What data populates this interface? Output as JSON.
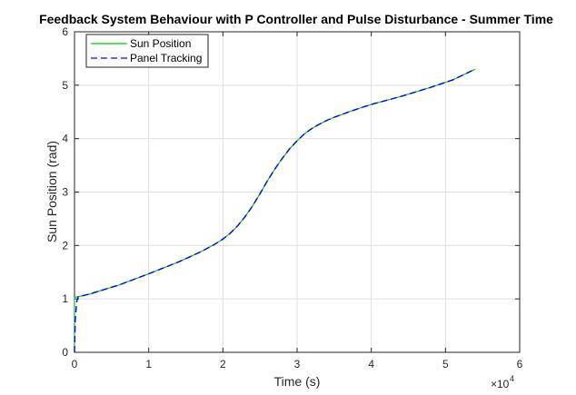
{
  "chart_data": {
    "type": "line",
    "title": "Feedback System Behaviour with P Controller and Pulse Disturbance - Summer Time",
    "xlabel": "Time (s)",
    "ylabel": "Sun Position (rad)",
    "x_multiplier_label": "×10",
    "x_multiplier_exponent": "4",
    "xlim": [
      0,
      60000
    ],
    "ylim": [
      0,
      6
    ],
    "x_ticks": [
      0,
      10000,
      20000,
      30000,
      40000,
      50000,
      60000
    ],
    "x_tick_labels": [
      "0",
      "1",
      "2",
      "3",
      "4",
      "5",
      "6"
    ],
    "y_ticks": [
      0,
      1,
      2,
      3,
      4,
      5,
      6
    ],
    "y_tick_labels": [
      "0",
      "1",
      "2",
      "3",
      "4",
      "5",
      "6"
    ],
    "grid": true,
    "legend_position": "top-left",
    "series": [
      {
        "name": "Sun Position",
        "color": "#00cc00",
        "dash": "solid",
        "x": [
          0,
          0,
          500,
          2000,
          6000,
          10000,
          14000,
          17000,
          19000,
          20000,
          21000,
          22000,
          23000,
          24000,
          25000,
          26000,
          27000,
          28000,
          29000,
          30000,
          31000,
          32000,
          33000,
          34000,
          35000,
          36000,
          38000,
          40000,
          44000,
          48000,
          51000,
          54000
        ],
        "y": [
          0,
          1.03,
          1.04,
          1.09,
          1.26,
          1.47,
          1.69,
          1.88,
          2.03,
          2.12,
          2.23,
          2.37,
          2.54,
          2.74,
          2.97,
          3.21,
          3.43,
          3.63,
          3.81,
          3.96,
          4.09,
          4.19,
          4.27,
          4.34,
          4.4,
          4.45,
          4.55,
          4.64,
          4.79,
          4.96,
          5.1,
          5.3
        ]
      },
      {
        "name": "Panel Tracking",
        "color": "#0000ff",
        "dash": "dashed",
        "x": [
          0,
          100,
          300,
          500,
          2000,
          6000,
          10000,
          14000,
          17000,
          19000,
          20000,
          21000,
          22000,
          23000,
          24000,
          25000,
          26000,
          27000,
          28000,
          29000,
          30000,
          31000,
          32000,
          33000,
          34000,
          35000,
          36000,
          38000,
          40000,
          44000,
          48000,
          51000,
          54000
        ],
        "y": [
          0,
          0.6,
          0.95,
          1.04,
          1.09,
          1.26,
          1.47,
          1.69,
          1.88,
          2.03,
          2.12,
          2.23,
          2.37,
          2.54,
          2.74,
          2.97,
          3.21,
          3.43,
          3.63,
          3.81,
          3.96,
          4.09,
          4.19,
          4.27,
          4.34,
          4.4,
          4.45,
          4.55,
          4.64,
          4.79,
          4.96,
          5.1,
          5.3
        ]
      }
    ]
  }
}
